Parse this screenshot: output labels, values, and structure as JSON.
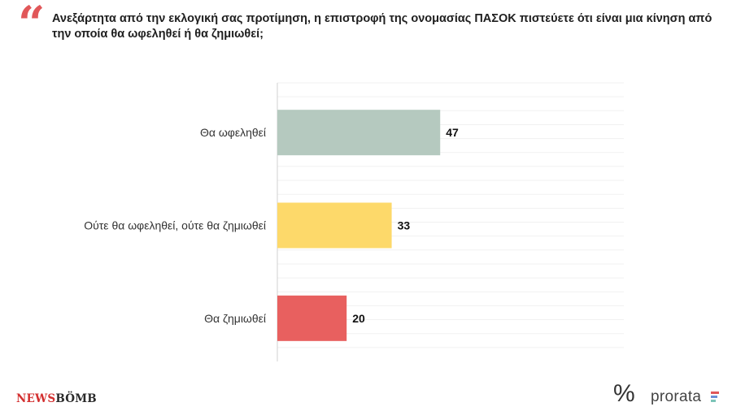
{
  "header": {
    "quote_mark": "“",
    "question": "Ανεξάρτητα από την εκλογική σας προτίμηση, η επιστροφή της ονομασίας ΠΑΣΟΚ πιστεύετε ότι είναι μια κίνηση από την οποία θα ωφεληθεί ή θα ζημιωθεί;"
  },
  "chart_data": {
    "type": "bar",
    "orientation": "horizontal",
    "categories": [
      "Θα ωφεληθεί",
      "Ούτε θα ωφεληθεί, ούτε θα ζημιωθεί",
      "Θα ζημιωθεί"
    ],
    "values": [
      47,
      33,
      20
    ],
    "colors": [
      "#b5c9bf",
      "#fdd96a",
      "#e8605f"
    ],
    "xlim": [
      0,
      100
    ],
    "grid": true,
    "title": "",
    "xlabel": "",
    "ylabel": ""
  },
  "footer": {
    "newsbomb_part1": "NEWS",
    "newsbomb_part2": "BÖMB",
    "percent_symbol": "%",
    "prorata": "prorata",
    "prorata_bar_colors": [
      "#e15759",
      "#6b8fd6",
      "#7cc4b8"
    ]
  }
}
